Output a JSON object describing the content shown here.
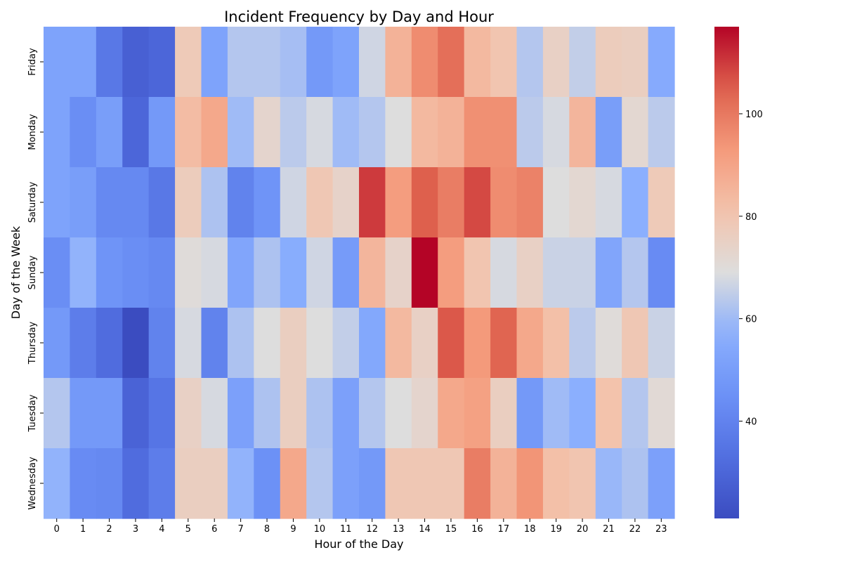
{
  "chart_data": {
    "type": "heatmap",
    "title": "Incident Frequency by Day and Hour",
    "xlabel": "Hour of the Day",
    "ylabel": "Day of the Week",
    "x_categories": [
      "0",
      "1",
      "2",
      "3",
      "4",
      "5",
      "6",
      "7",
      "8",
      "9",
      "10",
      "11",
      "12",
      "13",
      "14",
      "15",
      "16",
      "17",
      "18",
      "19",
      "20",
      "21",
      "22",
      "23"
    ],
    "y_categories": [
      "Friday",
      "Monday",
      "Saturday",
      "Sunday",
      "Thursday",
      "Tuesday",
      "Wednesday"
    ],
    "values": [
      [
        52,
        52,
        36,
        28,
        30,
        78,
        52,
        63,
        63,
        61,
        48,
        52,
        67,
        86,
        96,
        102,
        84,
        80,
        63,
        75,
        65,
        77,
        76,
        55
      ],
      [
        52,
        44,
        50,
        30,
        48,
        83,
        89,
        60,
        73,
        64,
        68,
        60,
        63,
        69,
        84,
        86,
        95,
        95,
        64,
        68,
        85,
        50,
        72,
        64
      ],
      [
        52,
        50,
        42,
        42,
        36,
        77,
        62,
        40,
        46,
        67,
        79,
        74,
        110,
        92,
        105,
        99,
        108,
        96,
        98,
        69,
        72,
        68,
        57,
        78
      ],
      [
        44,
        58,
        46,
        44,
        42,
        70,
        68,
        53,
        62,
        56,
        67,
        49,
        85,
        74,
        117,
        92,
        80,
        68,
        75,
        66,
        66,
        53,
        63,
        43
      ],
      [
        48,
        38,
        32,
        21,
        40,
        68,
        40,
        62,
        69,
        76,
        69,
        65,
        54,
        84,
        75,
        106,
        93,
        104,
        89,
        82,
        64,
        70,
        79,
        66
      ],
      [
        63,
        48,
        48,
        29,
        35,
        75,
        68,
        51,
        62,
        76,
        62,
        51,
        63,
        69,
        73,
        89,
        91,
        76,
        48,
        60,
        57,
        81,
        63,
        71
      ],
      [
        58,
        43,
        42,
        32,
        38,
        76,
        76,
        58,
        45,
        89,
        63,
        51,
        48,
        79,
        79,
        79,
        99,
        86,
        94,
        82,
        80,
        59,
        62,
        51
      ]
    ],
    "colorbar": {
      "colormap": "coolwarm",
      "vmin": 21,
      "vmax": 117,
      "ticks": [
        40,
        60,
        80,
        100
      ]
    }
  }
}
